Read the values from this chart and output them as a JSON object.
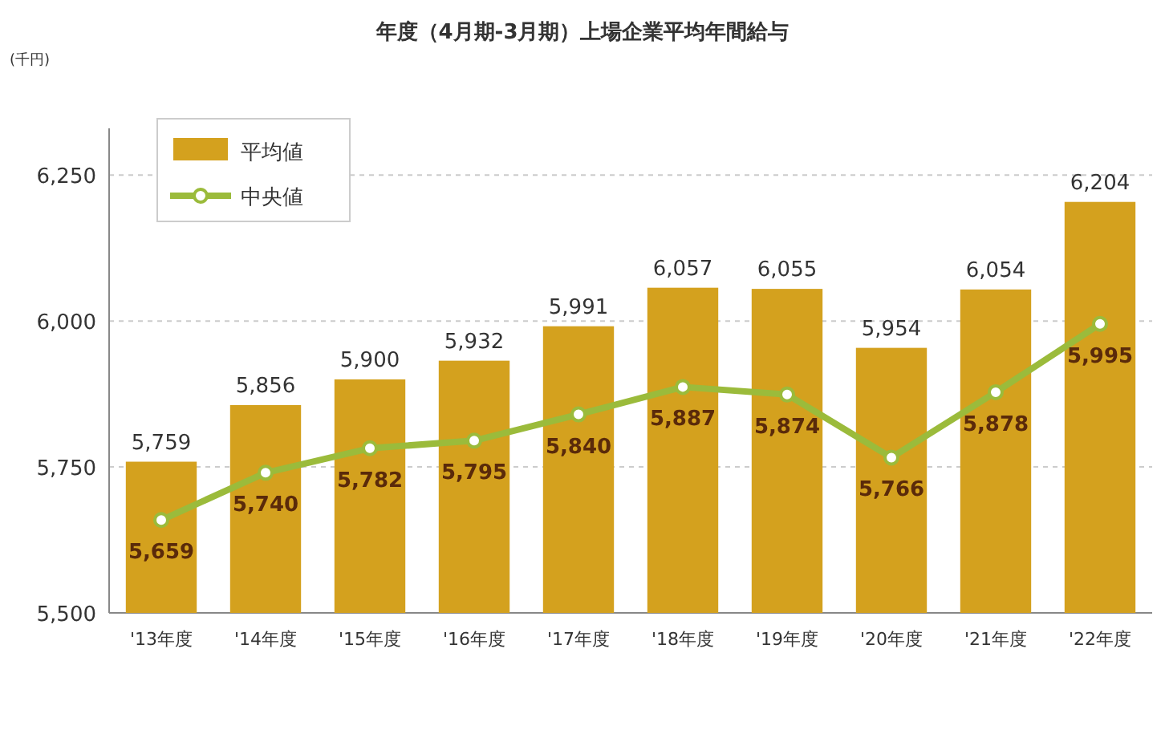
{
  "chart_data": {
    "type": "bar",
    "title": "年度（4月期-3月期）上場企業平均年間給与",
    "ylabel": "(千円)",
    "categories": [
      "'13年度",
      "'14年度",
      "'15年度",
      "'16年度",
      "'17年度",
      "'18年度",
      "'19年度",
      "'20年度",
      "'21年度",
      "'22年度"
    ],
    "series": [
      {
        "name": "平均値",
        "color": "#d4a11e",
        "values": [
          5759,
          5856,
          5900,
          5932,
          5991,
          6057,
          6055,
          5954,
          6054,
          6204
        ],
        "value_labels": [
          "5,759",
          "5,856",
          "5,900",
          "5,932",
          "5,991",
          "6,057",
          "6,055",
          "5,954",
          "6,054",
          "6,204"
        ]
      },
      {
        "name": "中央値",
        "type": "line",
        "color": "#9bbb3b",
        "values": [
          5659,
          5740,
          5782,
          5795,
          5840,
          5887,
          5874,
          5766,
          5878,
          5995
        ],
        "value_labels": [
          "5,659",
          "5,740",
          "5,782",
          "5,795",
          "5,840",
          "5,887",
          "5,874",
          "5,766",
          "5,878",
          "5,995"
        ]
      }
    ],
    "ylim": [
      5500,
      6330
    ],
    "yticks": [
      {
        "value": 5500,
        "label": "5,500"
      },
      {
        "value": 5750,
        "label": "5,750"
      },
      {
        "value": 6000,
        "label": "6,000"
      },
      {
        "value": 6250,
        "label": "6,250"
      }
    ],
    "grid": "y",
    "legend": "top left",
    "marker": "circle",
    "line_style": "solid"
  }
}
